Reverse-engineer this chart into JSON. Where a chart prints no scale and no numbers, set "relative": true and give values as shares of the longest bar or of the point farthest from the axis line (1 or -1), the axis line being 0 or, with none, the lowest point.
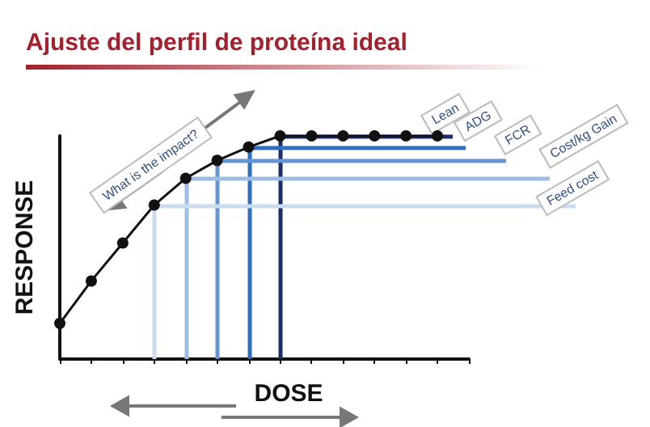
{
  "chart_data": {
    "type": "line",
    "title": "Ajuste del perfil de proteína ideal",
    "xlabel": "DOSE",
    "ylabel": "RESPONSE",
    "relative": true,
    "grid": false,
    "marker": "circle",
    "categories": [
      null,
      null,
      null,
      null,
      null,
      null,
      null,
      null,
      null,
      null,
      null,
      null,
      null,
      null
    ],
    "annotations": [
      "What is the impact?"
    ],
    "series": [
      {
        "color": "#111111",
        "values": [
          0.16,
          0.35,
          0.52,
          0.69,
          0.81,
          0.89,
          0.95,
          1,
          1,
          1,
          1,
          1,
          1,
          null
        ]
      }
    ],
    "ref_lines": [
      {
        "axis": "y",
        "value": 1,
        "label": "Lean",
        "color": "#1c2d6b"
      },
      {
        "axis": "y",
        "value": 0.95,
        "label": "ADG",
        "color": "#2f6fc2"
      },
      {
        "axis": "y",
        "value": 0.89,
        "label": "FCR",
        "color": "#6394d4"
      },
      {
        "axis": "y",
        "value": 0.81,
        "label": "Cost/kg Gain",
        "color": "#9dbde4"
      },
      {
        "axis": "y",
        "value": 0.69,
        "label": "Feed cost",
        "color": "#c9dcf0"
      }
    ]
  }
}
